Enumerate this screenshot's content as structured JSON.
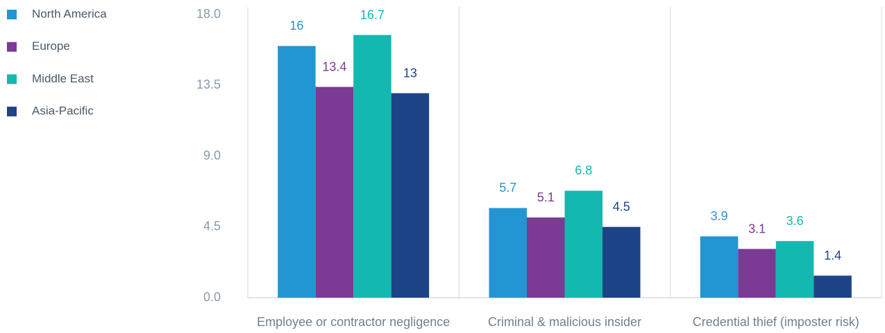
{
  "chart_data": {
    "type": "bar",
    "categories": [
      "Employee or contractor negligence",
      "Criminal & malicious insider",
      "Credential thief (imposter risk)"
    ],
    "series": [
      {
        "name": "North America",
        "color": "#2196d3",
        "values": [
          16,
          5.7,
          3.9
        ]
      },
      {
        "name": "Europe",
        "color": "#7b3a93",
        "values": [
          13.4,
          5.1,
          3.1
        ]
      },
      {
        "name": "Middle East",
        "color": "#13b8b0",
        "values": [
          16.7,
          6.8,
          3.6
        ]
      },
      {
        "name": "Asia-Pacific",
        "color": "#1c4486",
        "values": [
          13,
          4.5,
          1.4
        ]
      }
    ],
    "ylim": [
      0,
      18
    ],
    "yticks": [
      {
        "value": 0,
        "label": "0.0"
      },
      4.5,
      {
        "value": 9,
        "label": "9.0"
      },
      13.5,
      {
        "value": 18,
        "label": "18.0"
      }
    ],
    "legend": "top-left"
  }
}
